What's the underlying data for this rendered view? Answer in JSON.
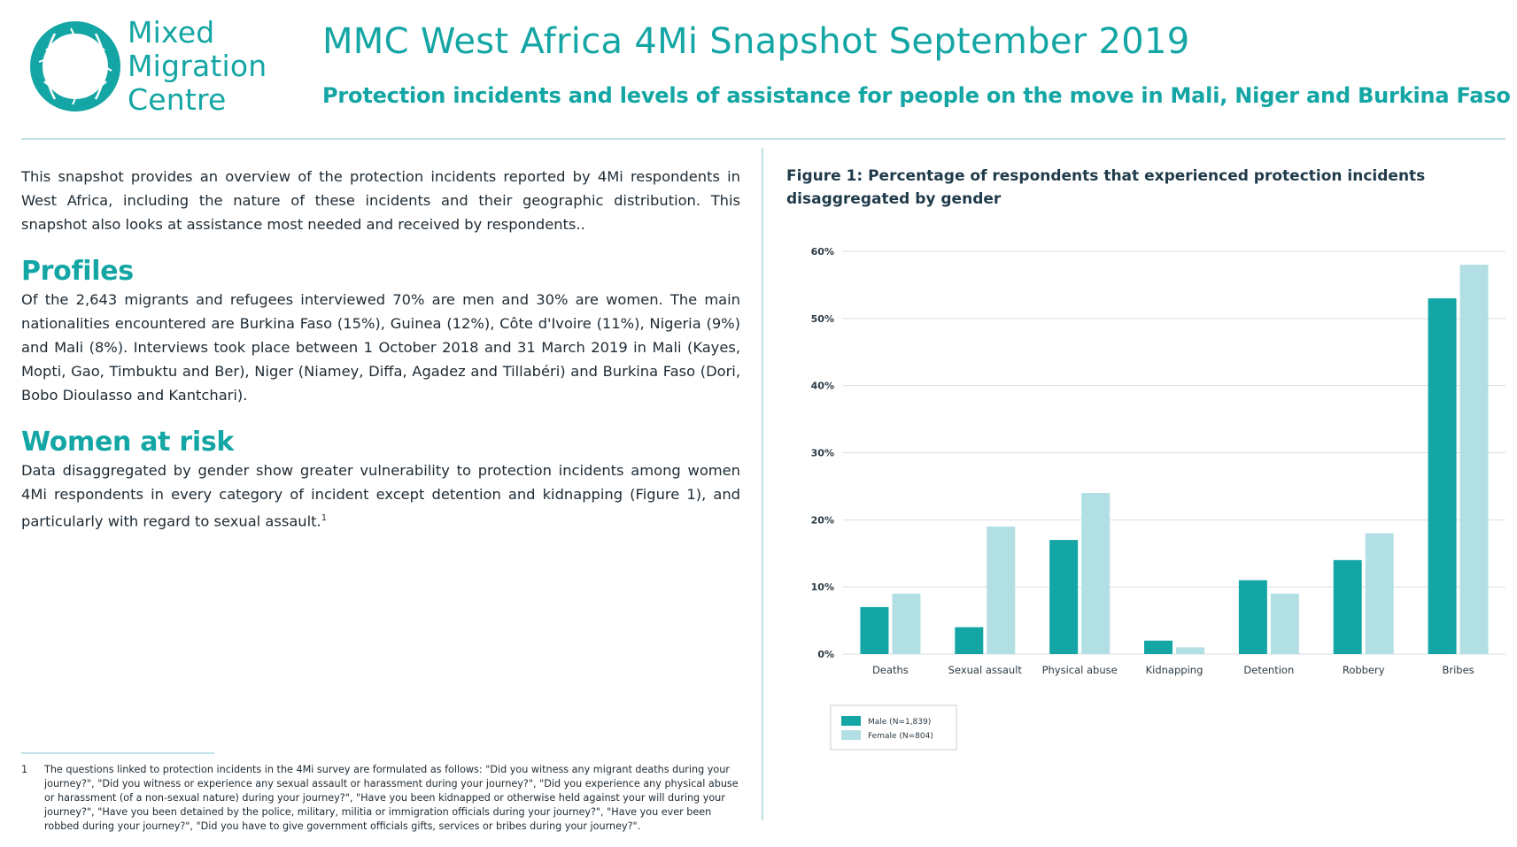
{
  "brand": {
    "logo_lines": [
      "Mixed",
      "Migration",
      "Centre"
    ],
    "primary_color": "#14a6a4",
    "secondary_color": "#b2dfe4"
  },
  "header": {
    "title": "MMC West Africa 4Mi Snapshot September 2019",
    "subtitle": "Protection incidents and levels of assistance for people on the move in Mali, Niger and Burkina Faso"
  },
  "left": {
    "intro": "This snapshot provides an overview of the protection incidents reported by 4Mi respondents in West Africa, including the nature of these incidents and their geographic distribution. This snapshot also looks at assistance most needed and received by respondents..",
    "profiles_heading": "Profiles",
    "profiles_text": "Of the 2,643 migrants and refugees interviewed 70% are men and 30% are women. The main nationalities encountered are Burkina Faso (15%), Guinea (12%), Côte d'Ivoire (11%), Nigeria (9%) and Mali (8%). Interviews took place between 1 October 2018 and 31 March 2019 in Mali (Kayes, Mopti, Gao, Timbuktu and Ber), Niger (Niamey, Diffa, Agadez and Tillabéri) and Burkina Faso (Dori, Bobo Dioulasso and Kantchari).",
    "women_heading": "Women at risk",
    "women_text": "Data disaggregated by gender show greater vulnerability to protection incidents among women 4Mi respondents in every category of incident except detention and kidnapping (Figure 1), and particularly with regard to sexual assault.",
    "women_sup": "1"
  },
  "footnote": {
    "number": "1",
    "text": "The questions linked to protection incidents in the 4Mi survey are formulated as follows: \"Did you witness any migrant deaths during your journey?\", \"Did you witness or experience any sexual assault or harassment during your journey?\", \"Did you experience any physical abuse or harassment (of a non-sexual nature) during your journey?\", \"Have you been kidnapped or otherwise held against your will during your journey?\", \"Have you been detained by the police, military, militia or immigration officials during your journey?\", \"Have you ever been robbed during your journey?\", \"Did you have to give government officials gifts, services or bribes during your journey?\"."
  },
  "figure": {
    "title": "Figure 1: Percentage of respondents that experienced protection incidents disaggregated by gender"
  },
  "chart_data": {
    "type": "bar",
    "categories": [
      "Deaths",
      "Sexual assault",
      "Physical abuse",
      "Kidnapping",
      "Detention",
      "Robbery",
      "Bribes"
    ],
    "series": [
      {
        "name": "Male (N=1,839)",
        "values": [
          7,
          4,
          17,
          2,
          11,
          14,
          53
        ],
        "color": "#14a6a4"
      },
      {
        "name": "Female (N=804)",
        "values": [
          9,
          19,
          24,
          1,
          9,
          18,
          58
        ],
        "color": "#b2dfe4"
      }
    ],
    "yticks": [
      "0%",
      "10%",
      "20%",
      "30%",
      "40%",
      "50%",
      "60%"
    ],
    "ylim": [
      0,
      60
    ],
    "grid": true,
    "legend_position": "bottom-left"
  }
}
